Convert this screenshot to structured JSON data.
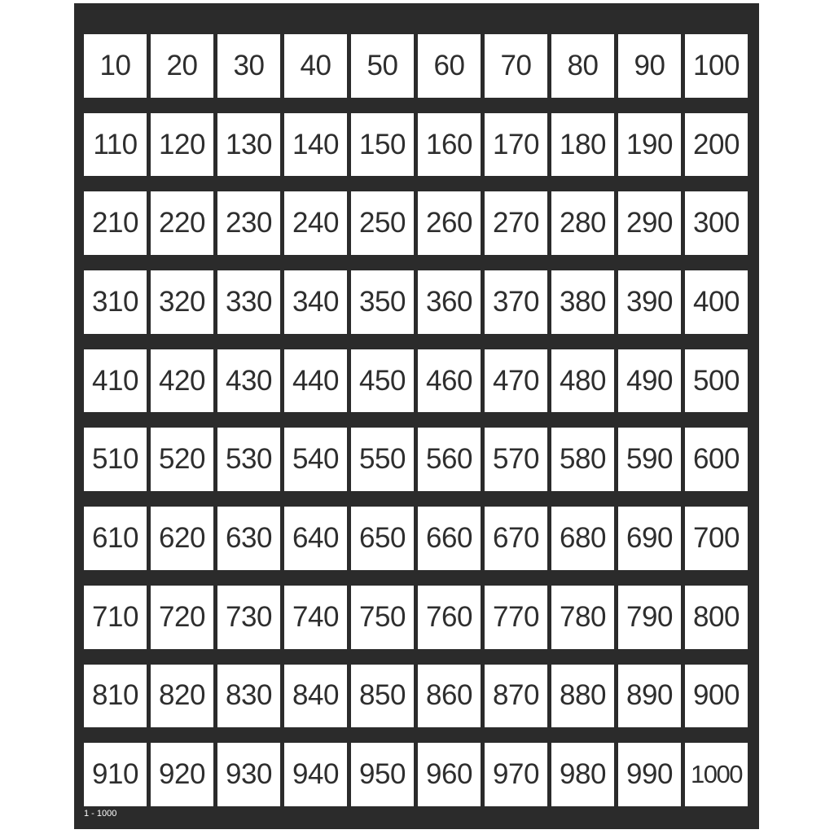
{
  "chart": {
    "numbers": [
      10,
      20,
      30,
      40,
      50,
      60,
      70,
      80,
      90,
      100,
      110,
      120,
      130,
      140,
      150,
      160,
      170,
      180,
      190,
      200,
      210,
      220,
      230,
      240,
      250,
      260,
      270,
      280,
      290,
      300,
      310,
      320,
      330,
      340,
      350,
      360,
      370,
      380,
      390,
      400,
      410,
      420,
      430,
      440,
      450,
      460,
      470,
      480,
      490,
      500,
      510,
      520,
      530,
      540,
      550,
      560,
      570,
      580,
      590,
      600,
      610,
      620,
      630,
      640,
      650,
      660,
      670,
      680,
      690,
      700,
      710,
      720,
      730,
      740,
      750,
      760,
      770,
      780,
      790,
      800,
      810,
      820,
      830,
      840,
      850,
      860,
      870,
      880,
      890,
      900,
      910,
      920,
      930,
      940,
      950,
      960,
      970,
      980,
      990,
      1000
    ],
    "footer_label": "1 - 1000",
    "background_color": "#2b2b2b",
    "card_color": "#ffffff"
  }
}
